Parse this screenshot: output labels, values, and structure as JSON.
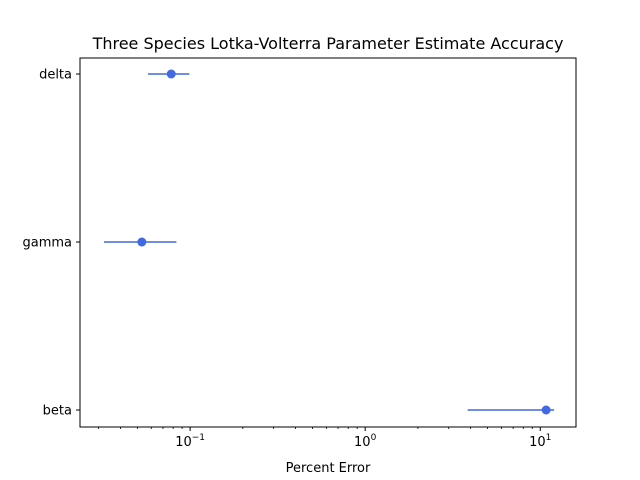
{
  "chart_data": {
    "type": "scatter",
    "title": "Three Species Lotka-Volterra Parameter Estimate Accuracy",
    "xlabel": "Percent Error",
    "ylabel": "",
    "xscale": "log",
    "xlim": [
      0.0235,
      16
    ],
    "categories": [
      "beta",
      "gamma",
      "delta"
    ],
    "x_ticks": [
      0.1,
      1,
      10
    ],
    "x_tick_labels": [
      {
        "base": "10",
        "exp": "−1"
      },
      {
        "base": "10",
        "exp": "0"
      },
      {
        "base": "10",
        "exp": "1"
      }
    ],
    "points": [
      {
        "label": "beta",
        "value": 10.8,
        "err_low": 3.85,
        "err_high": 12.0
      },
      {
        "label": "gamma",
        "value": 0.053,
        "err_low": 0.0322,
        "err_high": 0.0835
      },
      {
        "label": "delta",
        "value": 0.078,
        "err_low": 0.0575,
        "err_high": 0.099
      }
    ],
    "color": "#4169e1",
    "grid": false,
    "legend": "none"
  }
}
